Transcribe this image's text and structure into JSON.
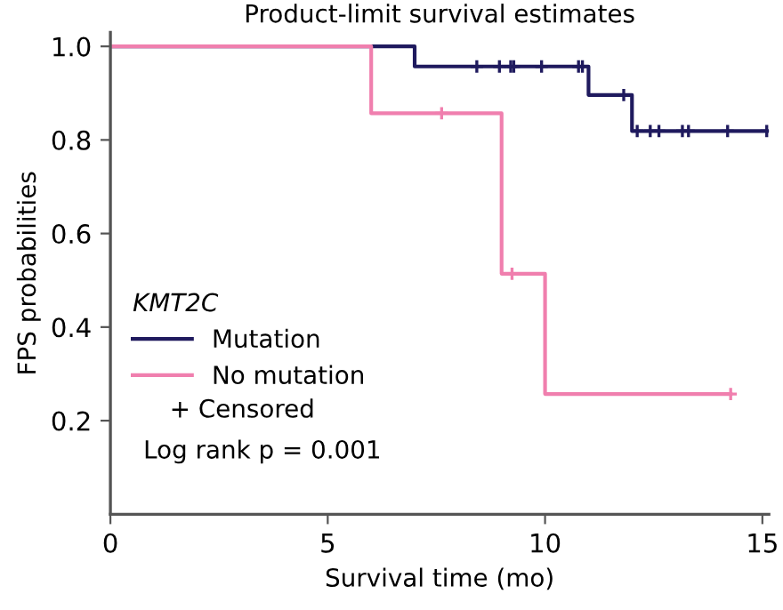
{
  "chart_data": {
    "type": "step",
    "title": "Product-limit survival estimates",
    "xlabel": "Survival time (mo)",
    "ylabel": "FPS probabilities",
    "legend_title": "KMT2C",
    "legend": "left",
    "series": [
      {
        "name": "Mutation",
        "color": "#1f1a5e",
        "x": [
          0,
          7,
          11,
          12,
          15.1
        ],
        "values": [
          1,
          0.957,
          0.896,
          0.819,
          0.819
        ]
      },
      {
        "name": "No mutation",
        "color": "#f07fae",
        "x": [
          0,
          6,
          9,
          10,
          14.27
        ],
        "values": [
          1,
          0.857,
          0.514,
          0.257,
          0.257
        ]
      },
      {
        "type": "scatter",
        "marker": "cross",
        "color": "#1f1a5e",
        "x": [
          8.43,
          8.95,
          9.21,
          9.28,
          9.92,
          10.77,
          10.86,
          11.81,
          12.12,
          12.42,
          12.62,
          13.16,
          13.3,
          14.2,
          15.1
        ],
        "values": [
          0.957,
          0.957,
          0.957,
          0.957,
          0.957,
          0.957,
          0.957,
          0.896,
          0.819,
          0.819,
          0.819,
          0.819,
          0.819,
          0.819,
          0.819
        ]
      },
      {
        "type": "scatter",
        "marker": "cross",
        "color": "#f07fae",
        "x": [
          7.62,
          9.24,
          14.27
        ],
        "values": [
          0.857,
          0.514,
          0.257
        ]
      }
    ],
    "annotations": [
      "+ Censored",
      "Log rank p = 0.001"
    ],
    "xlim": [
      0,
      15.15
    ],
    "xticks": [
      0,
      5,
      10,
      15
    ],
    "ylim": [
      0,
      1.03
    ],
    "yticks": [
      0.2,
      0.4,
      0.6,
      0.8,
      {
        "value": 1,
        "label": "1.0"
      }
    ],
    "grid": false
  }
}
